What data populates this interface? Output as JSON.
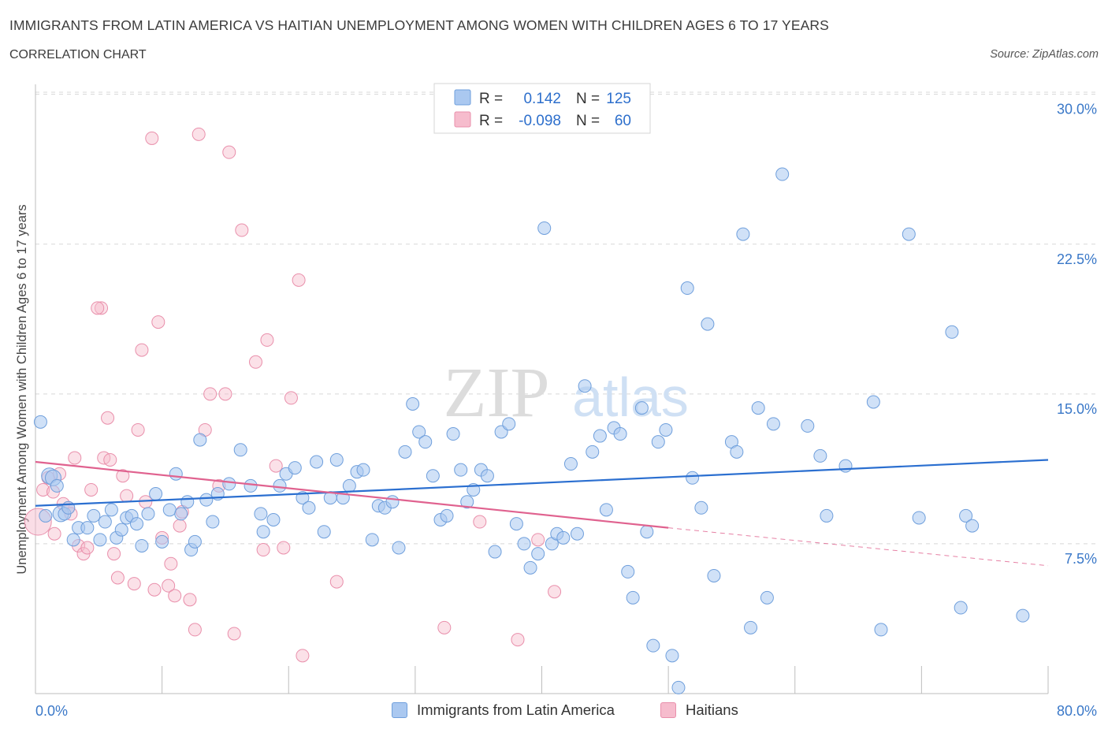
{
  "header": {
    "title": "IMMIGRANTS FROM LATIN AMERICA VS HAITIAN UNEMPLOYMENT AMONG WOMEN WITH CHILDREN AGES 6 TO 17 YEARS",
    "subtitle": "CORRELATION CHART",
    "source": "Source: ZipAtlas.com"
  },
  "colors": {
    "blue_fill": "#aac8f0",
    "blue_stroke": "#6f9fdc",
    "blue_line": "#2b6fd0",
    "pink_fill": "#f6bccd",
    "pink_stroke": "#e98fab",
    "pink_line": "#e0628f",
    "axis_text": "#3a78c8",
    "grid": "#d8d8d8"
  },
  "legend_stats": {
    "rows": [
      {
        "r_label": "R =",
        "r_value": "0.142",
        "n_label": "N =",
        "n_value": "125"
      },
      {
        "r_label": "R =",
        "r_value": "-0.098",
        "n_label": "N =",
        "n_value": "60"
      }
    ]
  },
  "watermark": {
    "zip": "ZIP",
    "atlas": "atlas"
  },
  "chart_data": {
    "type": "scatter",
    "title": "IMMIGRANTS FROM LATIN AMERICA VS HAITIAN UNEMPLOYMENT AMONG WOMEN WITH CHILDREN AGES 6 TO 17 YEARS",
    "xlabel": "",
    "ylabel": "Unemployment Among Women with Children Ages 6 to 17 years",
    "xlim": [
      0,
      80
    ],
    "ylim": [
      0,
      30.5
    ],
    "x_tick_labels": [
      {
        "value": 0,
        "label": "0.0%"
      },
      {
        "value": 80,
        "label": "80.0%"
      }
    ],
    "y_tick_labels": [
      {
        "value": 7.5,
        "label": "7.5%"
      },
      {
        "value": 15,
        "label": "15.0%"
      },
      {
        "value": 22.5,
        "label": "22.5%"
      },
      {
        "value": 30,
        "label": "30.0%"
      }
    ],
    "grid": true,
    "legend_position": "bottom",
    "series": [
      {
        "name": "Immigrants from Latin America",
        "color": "#aac8f0",
        "trend": {
          "x0": 0,
          "y0": 9.4,
          "x1": 80,
          "y1": 11.7
        },
        "points": [
          [
            0.4,
            13.6
          ],
          [
            0.8,
            8.9
          ],
          [
            1.1,
            10.9
          ],
          [
            1.4,
            10.8
          ],
          [
            1.7,
            10.4
          ],
          [
            2.0,
            9.0
          ],
          [
            2.3,
            9.0
          ],
          [
            2.6,
            9.3
          ],
          [
            3.0,
            7.7
          ],
          [
            3.4,
            8.3
          ],
          [
            4.1,
            8.3
          ],
          [
            4.6,
            8.9
          ],
          [
            5.1,
            7.7
          ],
          [
            5.5,
            8.6
          ],
          [
            6.0,
            9.2
          ],
          [
            6.4,
            7.8
          ],
          [
            6.8,
            8.2
          ],
          [
            7.2,
            8.8
          ],
          [
            7.6,
            8.9
          ],
          [
            8.0,
            8.5
          ],
          [
            8.4,
            7.4
          ],
          [
            8.9,
            9.0
          ],
          [
            9.5,
            10.0
          ],
          [
            10.0,
            7.6
          ],
          [
            10.6,
            9.2
          ],
          [
            11.1,
            11.0
          ],
          [
            11.5,
            9.0
          ],
          [
            12.0,
            9.6
          ],
          [
            12.3,
            7.2
          ],
          [
            12.6,
            7.6
          ],
          [
            13.0,
            12.7
          ],
          [
            13.5,
            9.7
          ],
          [
            14.0,
            8.6
          ],
          [
            14.4,
            10.0
          ],
          [
            15.3,
            10.5
          ],
          [
            16.2,
            12.2
          ],
          [
            17.0,
            10.4
          ],
          [
            17.8,
            9.0
          ],
          [
            18.0,
            8.1
          ],
          [
            18.8,
            8.7
          ],
          [
            19.3,
            10.4
          ],
          [
            19.8,
            11.0
          ],
          [
            20.5,
            11.3
          ],
          [
            21.1,
            9.8
          ],
          [
            21.6,
            9.3
          ],
          [
            22.2,
            11.6
          ],
          [
            22.8,
            8.1
          ],
          [
            23.3,
            9.8
          ],
          [
            23.8,
            11.7
          ],
          [
            24.3,
            9.8
          ],
          [
            24.8,
            10.4
          ],
          [
            25.4,
            11.1
          ],
          [
            25.9,
            11.2
          ],
          [
            26.6,
            7.7
          ],
          [
            27.1,
            9.4
          ],
          [
            27.6,
            9.3
          ],
          [
            28.2,
            9.6
          ],
          [
            28.7,
            7.3
          ],
          [
            29.2,
            12.1
          ],
          [
            29.8,
            14.5
          ],
          [
            30.3,
            13.1
          ],
          [
            30.8,
            12.6
          ],
          [
            31.4,
            10.9
          ],
          [
            32.0,
            8.7
          ],
          [
            32.5,
            8.9
          ],
          [
            33.0,
            13.0
          ],
          [
            33.6,
            11.2
          ],
          [
            34.1,
            9.6
          ],
          [
            34.6,
            10.2
          ],
          [
            35.2,
            11.2
          ],
          [
            35.7,
            10.9
          ],
          [
            36.3,
            7.1
          ],
          [
            36.8,
            13.1
          ],
          [
            37.4,
            13.5
          ],
          [
            38.0,
            8.5
          ],
          [
            38.6,
            7.5
          ],
          [
            39.1,
            6.3
          ],
          [
            39.7,
            7.0
          ],
          [
            40.2,
            23.3
          ],
          [
            40.8,
            7.5
          ],
          [
            41.2,
            8.0
          ],
          [
            41.7,
            7.8
          ],
          [
            42.3,
            11.5
          ],
          [
            42.8,
            8.0
          ],
          [
            43.4,
            15.4
          ],
          [
            44.0,
            12.1
          ],
          [
            44.6,
            12.9
          ],
          [
            45.1,
            9.2
          ],
          [
            45.7,
            13.3
          ],
          [
            46.2,
            13.0
          ],
          [
            46.8,
            6.1
          ],
          [
            47.2,
            4.8
          ],
          [
            47.9,
            14.3
          ],
          [
            48.3,
            8.1
          ],
          [
            48.8,
            2.4
          ],
          [
            49.2,
            12.6
          ],
          [
            49.8,
            13.2
          ],
          [
            50.3,
            1.9
          ],
          [
            50.8,
            0.3
          ],
          [
            51.5,
            20.3
          ],
          [
            51.9,
            10.8
          ],
          [
            52.6,
            9.3
          ],
          [
            53.1,
            18.5
          ],
          [
            53.6,
            5.9
          ],
          [
            55.0,
            12.6
          ],
          [
            55.4,
            12.1
          ],
          [
            55.9,
            23.0
          ],
          [
            56.5,
            3.3
          ],
          [
            57.1,
            14.3
          ],
          [
            57.8,
            4.8
          ],
          [
            58.3,
            13.5
          ],
          [
            59.0,
            26.0
          ],
          [
            61.0,
            13.4
          ],
          [
            62.0,
            11.9
          ],
          [
            62.5,
            8.9
          ],
          [
            64.0,
            11.4
          ],
          [
            66.2,
            14.6
          ],
          [
            66.8,
            3.2
          ],
          [
            69.0,
            23.0
          ],
          [
            69.8,
            8.8
          ],
          [
            72.4,
            18.1
          ],
          [
            73.1,
            4.3
          ],
          [
            73.5,
            8.9
          ],
          [
            74.0,
            8.4
          ],
          [
            78.0,
            3.9
          ]
        ]
      },
      {
        "name": "Haitians",
        "color": "#f6bccd",
        "trend": {
          "x0": 0,
          "y0": 11.6,
          "x1": 50,
          "y1": 8.3,
          "dash_to_x": 80,
          "dash_to_y": 6.4
        },
        "points": [
          [
            0.2,
            8.6
          ],
          [
            0.6,
            10.2
          ],
          [
            1.0,
            10.8
          ],
          [
            1.4,
            10.1
          ],
          [
            1.5,
            8.0
          ],
          [
            1.9,
            11.0
          ],
          [
            2.2,
            9.5
          ],
          [
            2.6,
            9.3
          ],
          [
            2.8,
            9.0
          ],
          [
            3.1,
            11.8
          ],
          [
            3.4,
            7.4
          ],
          [
            3.8,
            7.0
          ],
          [
            4.1,
            7.3
          ],
          [
            4.4,
            10.2
          ],
          [
            5.2,
            19.3
          ],
          [
            5.4,
            11.8
          ],
          [
            5.7,
            13.8
          ],
          [
            5.9,
            11.7
          ],
          [
            6.2,
            7.0
          ],
          [
            6.5,
            5.8
          ],
          [
            6.9,
            10.9
          ],
          [
            7.2,
            9.9
          ],
          [
            7.8,
            5.5
          ],
          [
            8.1,
            13.2
          ],
          [
            8.4,
            17.2
          ],
          [
            8.7,
            9.6
          ],
          [
            9.2,
            27.8
          ],
          [
            9.4,
            5.2
          ],
          [
            9.7,
            18.6
          ],
          [
            10.0,
            7.8
          ],
          [
            10.5,
            5.4
          ],
          [
            10.7,
            6.5
          ],
          [
            11.0,
            4.9
          ],
          [
            11.4,
            8.4
          ],
          [
            11.6,
            9.1
          ],
          [
            12.2,
            4.7
          ],
          [
            12.6,
            3.2
          ],
          [
            12.9,
            28.0
          ],
          [
            13.4,
            13.2
          ],
          [
            13.8,
            15.0
          ],
          [
            14.5,
            10.4
          ],
          [
            15.0,
            15.0
          ],
          [
            15.3,
            27.1
          ],
          [
            15.7,
            3.0
          ],
          [
            16.3,
            23.2
          ],
          [
            17.4,
            16.6
          ],
          [
            18.0,
            7.2
          ],
          [
            18.3,
            17.7
          ],
          [
            19.0,
            11.4
          ],
          [
            19.6,
            7.3
          ],
          [
            20.2,
            14.8
          ],
          [
            20.8,
            20.7
          ],
          [
            21.1,
            1.9
          ],
          [
            23.8,
            5.6
          ],
          [
            32.3,
            3.3
          ],
          [
            35.1,
            8.6
          ],
          [
            38.1,
            2.7
          ],
          [
            39.7,
            7.7
          ],
          [
            41.0,
            5.1
          ],
          [
            4.9,
            19.3
          ]
        ]
      }
    ]
  },
  "legend_bottom": {
    "items": [
      {
        "label": "Immigrants from Latin America"
      },
      {
        "label": "Haitians"
      }
    ]
  }
}
